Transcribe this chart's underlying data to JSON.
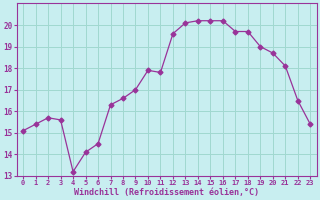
{
  "x": [
    0,
    1,
    2,
    3,
    4,
    5,
    6,
    7,
    8,
    9,
    10,
    11,
    12,
    13,
    14,
    15,
    16,
    17,
    18,
    19,
    20,
    21,
    22,
    23
  ],
  "y": [
    15.1,
    15.4,
    15.7,
    15.6,
    13.2,
    14.1,
    14.5,
    16.3,
    16.6,
    17.0,
    17.9,
    17.8,
    19.6,
    20.1,
    20.2,
    20.2,
    20.2,
    19.7,
    19.7,
    19.0,
    18.7,
    18.1,
    16.5,
    15.4
  ],
  "line_color": "#993399",
  "marker": "D",
  "marker_size": 2.5,
  "bg_color": "#c8eef0",
  "grid_color": "#a0d8d0",
  "xlabel": "Windchill (Refroidissement éolien,°C)",
  "xlabel_color": "#993399",
  "tick_color": "#993399",
  "spine_color": "#993399",
  "ylim": [
    13,
    21
  ],
  "xlim": [
    -0.5,
    23.5
  ],
  "yticks": [
    13,
    14,
    15,
    16,
    17,
    18,
    19,
    20
  ],
  "xticks": [
    0,
    1,
    2,
    3,
    4,
    5,
    6,
    7,
    8,
    9,
    10,
    11,
    12,
    13,
    14,
    15,
    16,
    17,
    18,
    19,
    20,
    21,
    22,
    23
  ]
}
